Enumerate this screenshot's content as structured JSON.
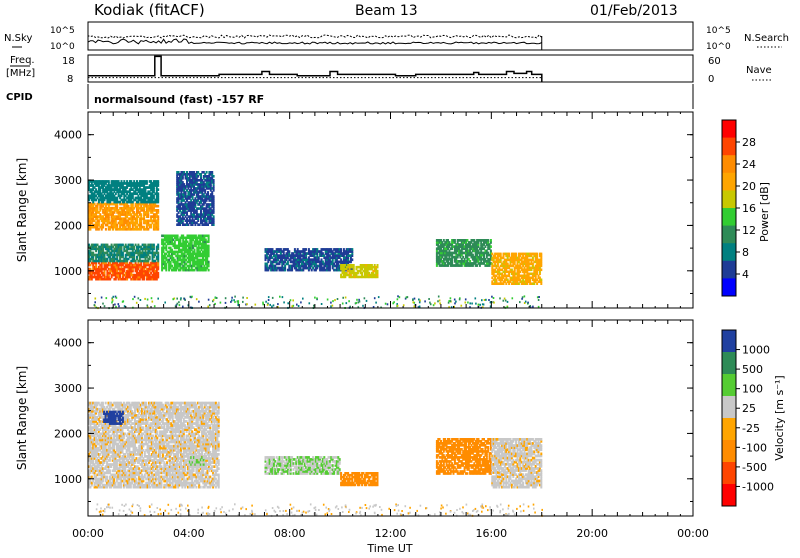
{
  "header": {
    "station": "Kodiak (fitACF)",
    "beam": "Beam 13",
    "date": "01/Feb/2013"
  },
  "strip_noise": {
    "left_label": "N.Sky",
    "right_label": "N.Search",
    "left_ticks": [
      "10^5",
      "10^0"
    ],
    "right_ticks": [
      "10^5",
      "10^0"
    ]
  },
  "strip_freq": {
    "left_label_1": "Freq.",
    "left_label_2": "[MHz]",
    "right_label": "Nave",
    "left_ticks": [
      "18",
      "8"
    ],
    "right_ticks": [
      "60",
      "0"
    ]
  },
  "cpid": {
    "label": "CPID",
    "text": "normalsound (fast) -157 RF"
  },
  "power_scale": {
    "label": "Power [dB]",
    "ticks": [
      "28",
      "24",
      "20",
      "16",
      "12",
      "8",
      "4"
    ],
    "colors": [
      "#ff0000",
      "#ff4500",
      "#ff8c00",
      "#ffa500",
      "#c8c800",
      "#32cd32",
      "#2e8b57",
      "#008080",
      "#1e3c96",
      "#0000ff"
    ]
  },
  "velocity_scale": {
    "label": "Velocity [m s⁻¹]",
    "ticks": [
      "1000",
      "500",
      "100",
      "25",
      "-25",
      "-100",
      "-500",
      "-1000"
    ],
    "colors": [
      "#2040a0",
      "#2e8b57",
      "#55cc33",
      "#c8c8c8",
      "#ffa500",
      "#ff8c00",
      "#ff4500",
      "#ff0000"
    ]
  },
  "chart_data": [
    {
      "type": "line",
      "ylabel": "N.Sky",
      "x": [
        "00:00",
        "04:00",
        "08:00",
        "12:00",
        "16:00",
        "18:00"
      ],
      "series": [
        {
          "values": [
            2.0,
            2.2,
            2.0,
            2.0,
            2.1,
            2.0
          ]
        }
      ]
    },
    {
      "type": "line",
      "ylabel": "Freq. [MHz]",
      "ylim": [
        8,
        18
      ],
      "x": [
        "00:00",
        "02:40",
        "02:55",
        "07:00",
        "09:30",
        "16:50",
        "18:00"
      ],
      "series": [
        {
          "values": [
            10.5,
            17.5,
            10.5,
            11.5,
            11.5,
            11.5,
            10.5
          ]
        }
      ]
    },
    {
      "type": "heatmap",
      "title": "",
      "xlabel": "Time UT",
      "ylabel": "Slant Range [km]",
      "xlim": [
        "00:00",
        "24:00"
      ],
      "ylim": [
        180,
        4500
      ],
      "x_ticks": [
        "00:00",
        "04:00",
        "08:00",
        "12:00",
        "16:00",
        "20:00",
        "00:00"
      ],
      "y_ticks": [
        "1000",
        "2000",
        "3000",
        "4000"
      ],
      "colorbar": "Power [dB]",
      "regions": [
        {
          "t0": 0.0,
          "t1": 2.8,
          "r0": 800,
          "r1": 1200,
          "value": 26
        },
        {
          "t0": 0.0,
          "t1": 2.8,
          "r0": 1200,
          "r1": 1600,
          "value": 10
        },
        {
          "t0": 0.0,
          "t1": 2.8,
          "r0": 1900,
          "r1": 2500,
          "value": 22
        },
        {
          "t0": 0.0,
          "t1": 2.8,
          "r0": 2500,
          "r1": 3000,
          "value": 8
        },
        {
          "t0": 2.9,
          "t1": 4.8,
          "r0": 1000,
          "r1": 1800,
          "value": 14
        },
        {
          "t0": 3.5,
          "t1": 5.0,
          "r0": 2000,
          "r1": 3200,
          "value": 6
        },
        {
          "t0": 7.0,
          "t1": 10.5,
          "r0": 1000,
          "r1": 1500,
          "value": 6
        },
        {
          "t0": 10.0,
          "t1": 11.5,
          "r0": 850,
          "r1": 1150,
          "value": 18
        },
        {
          "t0": 13.8,
          "t1": 16.0,
          "r0": 1100,
          "r1": 1700,
          "value": 12
        },
        {
          "t0": 16.0,
          "t1": 18.0,
          "r0": 700,
          "r1": 1400,
          "value": 20
        }
      ]
    },
    {
      "type": "heatmap",
      "title": "",
      "xlabel": "Time UT",
      "ylabel": "Slant Range [km]",
      "xlim": [
        "00:00",
        "24:00"
      ],
      "ylim": [
        180,
        4500
      ],
      "x_ticks": [
        "00:00",
        "04:00",
        "08:00",
        "12:00",
        "16:00",
        "20:00",
        "00:00"
      ],
      "y_ticks": [
        "1000",
        "2000",
        "3000",
        "4000"
      ],
      "colorbar": "Velocity [m s⁻¹]",
      "regions": [
        {
          "t0": 0.0,
          "t1": 5.2,
          "r0": 800,
          "r1": 2700,
          "value": 0
        },
        {
          "t0": 0.6,
          "t1": 1.4,
          "r0": 2200,
          "r1": 2500,
          "value": 800
        },
        {
          "t0": 4.0,
          "t1": 4.6,
          "r0": 1300,
          "r1": 1500,
          "value": 60
        },
        {
          "t0": 7.0,
          "t1": 10.0,
          "r0": 1100,
          "r1": 1500,
          "value": 60
        },
        {
          "t0": 10.0,
          "t1": 11.5,
          "r0": 850,
          "r1": 1150,
          "value": -200
        },
        {
          "t0": 13.8,
          "t1": 16.0,
          "r0": 1100,
          "r1": 1900,
          "value": -200
        },
        {
          "t0": 16.0,
          "t1": 18.0,
          "r0": 800,
          "r1": 1900,
          "value": 0
        }
      ]
    }
  ]
}
